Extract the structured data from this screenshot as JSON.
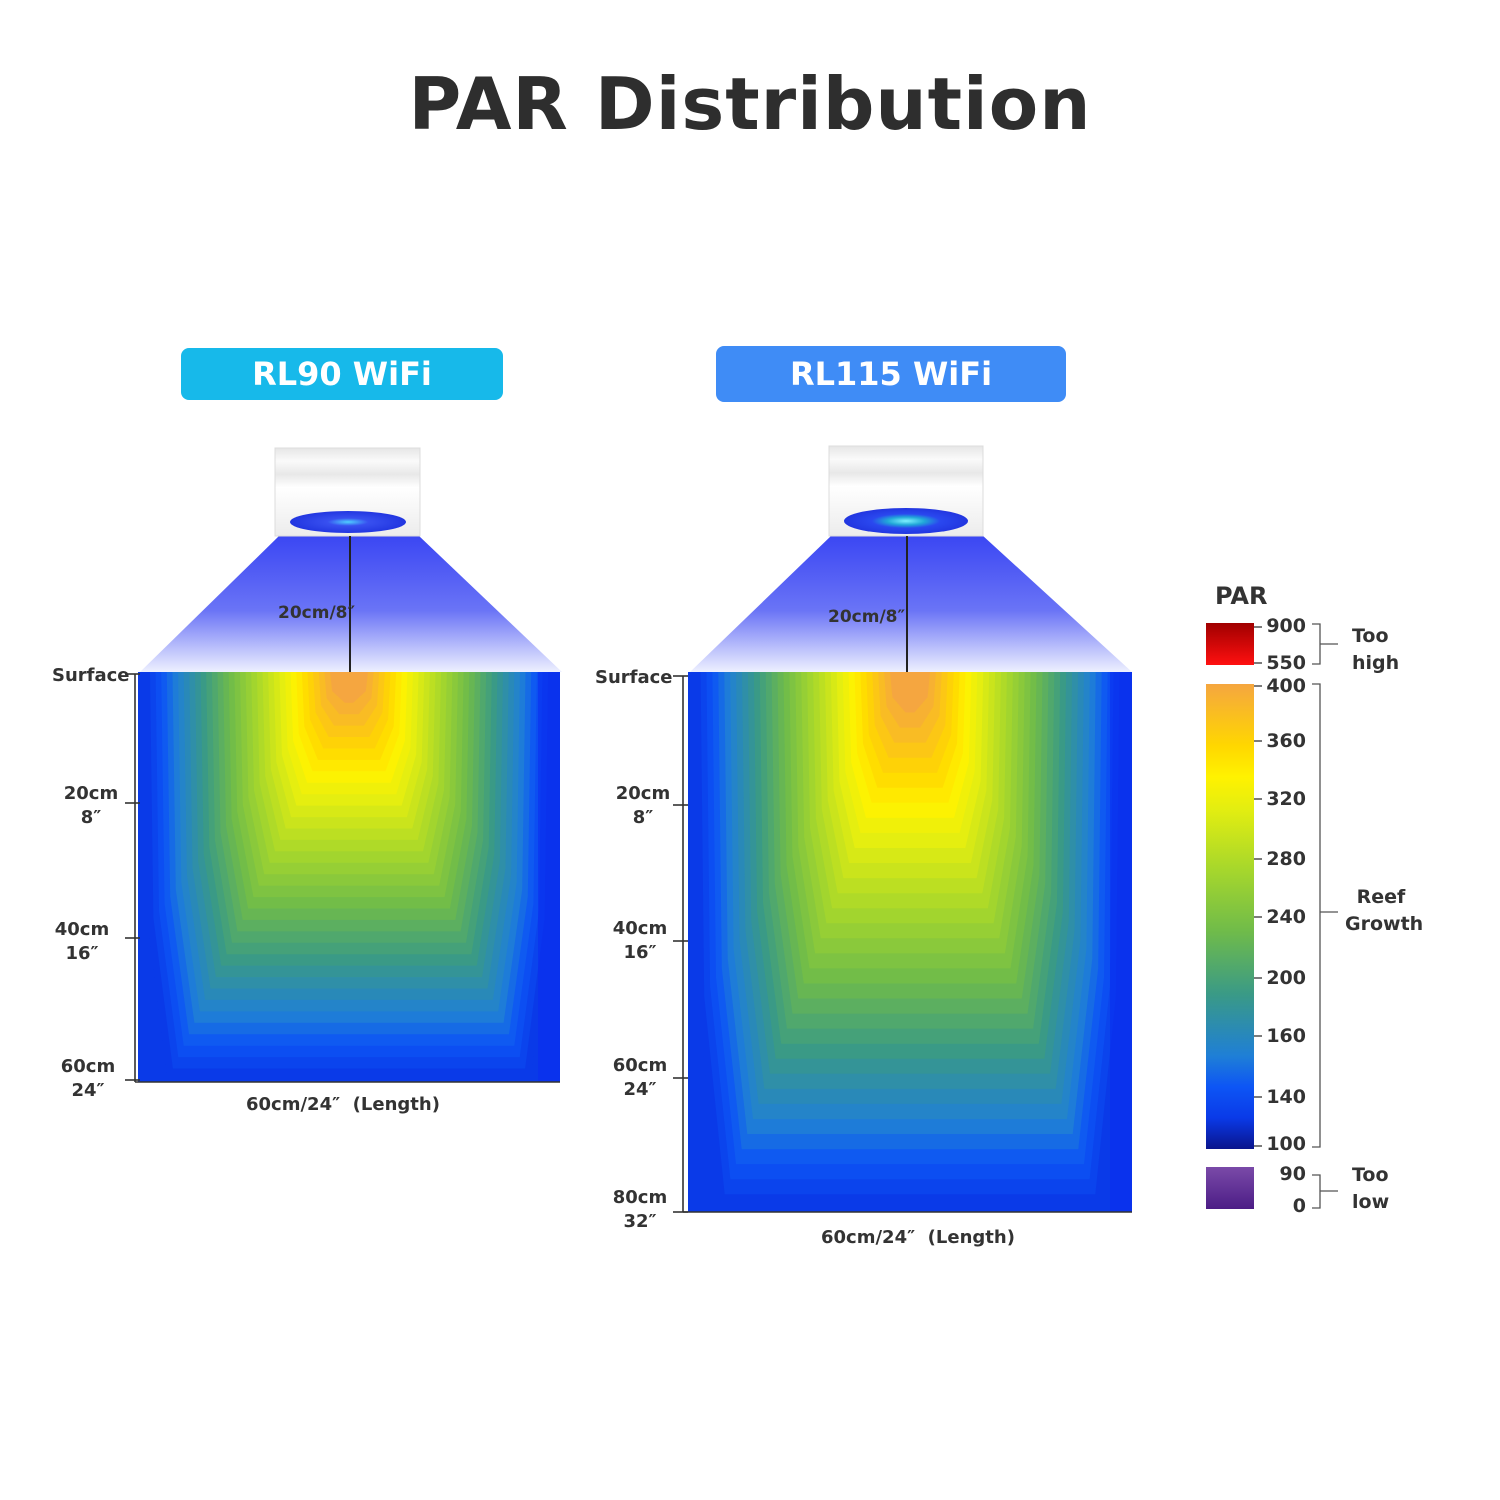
{
  "title": "PAR Distribution",
  "colors": {
    "pill_left": "#17b9ea",
    "pill_right": "#3f8cf6",
    "beam": "#3f48f5",
    "fixture": "#f1f1f1",
    "lens": "#2f3ee8"
  },
  "legend": {
    "title": "PAR",
    "bands": [
      {
        "label": "Too high",
        "values": [
          "900",
          "550"
        ],
        "colors": [
          "#a00000",
          "#ff1010"
        ]
      },
      {
        "label": "Reef Growth",
        "values": [
          "400",
          "360",
          "320",
          "280",
          "240",
          "200",
          "160",
          "140",
          "100"
        ]
      },
      {
        "label": "Too low",
        "values": [
          "90",
          "0"
        ],
        "colors": [
          "#7a4aa8",
          "#4c1d86"
        ]
      }
    ],
    "gradient": [
      {
        "par": 400,
        "color": "#f5a640"
      },
      {
        "par": 360,
        "color": "#ffd700"
      },
      {
        "par": 340,
        "color": "#fff200"
      },
      {
        "par": 320,
        "color": "#e4ee10"
      },
      {
        "par": 280,
        "color": "#a6d72c"
      },
      {
        "par": 240,
        "color": "#6fbb4a"
      },
      {
        "par": 200,
        "color": "#3a9a86"
      },
      {
        "par": 160,
        "color": "#1f7fd6"
      },
      {
        "par": 140,
        "color": "#0d55f5"
      },
      {
        "par": 120,
        "color": "#0a3ae8"
      },
      {
        "par": 100,
        "color": "#0a148c"
      }
    ]
  },
  "chart_data": [
    {
      "type": "heatmap",
      "title": "RL90 WiFi",
      "fixture_height_label": "20cm/8″",
      "xlabel": "60cm/24″  (Length)",
      "x_length_cm": 60,
      "depth_max_cm": 60,
      "depth_ticks": [
        {
          "cm": 0,
          "label": "Surface"
        },
        {
          "cm": 20,
          "label": "20cm\n8″"
        },
        {
          "cm": 40,
          "label": "40cm\n16″"
        },
        {
          "cm": 60,
          "label": "60cm\n24″"
        }
      ],
      "hotspot_par": 400,
      "edge_par": 120
    },
    {
      "type": "heatmap",
      "title": "RL115  WiFi",
      "fixture_height_label": "20cm/8″",
      "xlabel": "60cm/24″  (Length)",
      "x_length_cm": 60,
      "depth_max_cm": 80,
      "depth_ticks": [
        {
          "cm": 0,
          "label": "Surface"
        },
        {
          "cm": 20,
          "label": "20cm\n8″"
        },
        {
          "cm": 40,
          "label": "40cm\n16″"
        },
        {
          "cm": 60,
          "label": "60cm\n24″"
        },
        {
          "cm": 80,
          "label": "80cm\n32″"
        }
      ],
      "hotspot_par": 400,
      "edge_par": 120
    }
  ]
}
